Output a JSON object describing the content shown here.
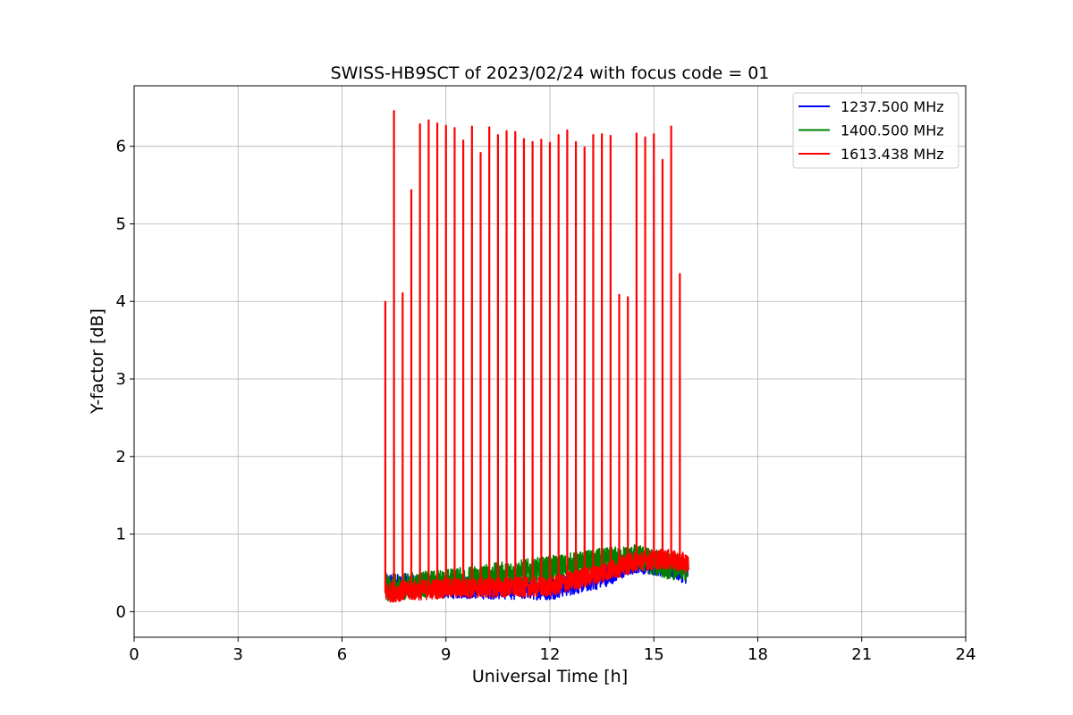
{
  "chart_data": {
    "type": "line",
    "title": "SWISS-HB9SCT of 2023/02/24 with focus code = 01",
    "xlabel": "Universal Time [h]",
    "ylabel": "Y-factor [dB]",
    "xlim": [
      0,
      24
    ],
    "ylim": [
      -0.33,
      6.78
    ],
    "xticks": [
      0,
      3,
      6,
      9,
      12,
      15,
      18,
      21,
      24
    ],
    "yticks": [
      0,
      1,
      2,
      3,
      4,
      5,
      6
    ],
    "grid": true,
    "legend_position": "top-right",
    "series": [
      {
        "name": "1237.500 MHz",
        "color": "#0000ff",
        "x_range": [
          7.25,
          16.0
        ],
        "baseline": [
          [
            7.25,
            0.35
          ],
          [
            9.0,
            0.32
          ],
          [
            12.0,
            0.3
          ],
          [
            13.5,
            0.45
          ],
          [
            14.5,
            0.65
          ],
          [
            15.3,
            0.6
          ],
          [
            16.0,
            0.5
          ]
        ],
        "noise_amplitude": 0.15
      },
      {
        "name": "1400.500 MHz",
        "color": "#008000",
        "x_range": [
          7.25,
          16.0
        ],
        "baseline": [
          [
            7.25,
            0.3
          ],
          [
            9.0,
            0.38
          ],
          [
            12.0,
            0.55
          ],
          [
            13.5,
            0.65
          ],
          [
            14.5,
            0.7
          ],
          [
            15.3,
            0.6
          ],
          [
            16.0,
            0.55
          ]
        ],
        "noise_amplitude": 0.17
      },
      {
        "name": "1613.438 MHz",
        "color": "#ff0000",
        "x_range": [
          7.25,
          16.0
        ],
        "baseline": [
          [
            7.25,
            0.25
          ],
          [
            9.0,
            0.3
          ],
          [
            12.0,
            0.32
          ],
          [
            13.5,
            0.5
          ],
          [
            14.5,
            0.65
          ],
          [
            15.3,
            0.68
          ],
          [
            16.0,
            0.62
          ]
        ],
        "noise_amplitude": 0.13,
        "peaks": [
          [
            7.25,
            4.0
          ],
          [
            7.5,
            6.46
          ],
          [
            7.75,
            4.11
          ],
          [
            8.0,
            5.44
          ],
          [
            8.25,
            6.29
          ],
          [
            8.5,
            6.34
          ],
          [
            8.75,
            6.3
          ],
          [
            9.0,
            6.27
          ],
          [
            9.25,
            6.24
          ],
          [
            9.5,
            6.08
          ],
          [
            9.75,
            6.26
          ],
          [
            10.0,
            5.92
          ],
          [
            10.25,
            6.25
          ],
          [
            10.5,
            6.15
          ],
          [
            10.75,
            6.2
          ],
          [
            11.0,
            6.19
          ],
          [
            11.25,
            6.1
          ],
          [
            11.5,
            6.06
          ],
          [
            11.75,
            6.09
          ],
          [
            12.0,
            6.05
          ],
          [
            12.25,
            6.15
          ],
          [
            12.5,
            6.21
          ],
          [
            12.75,
            6.06
          ],
          [
            13.0,
            5.99
          ],
          [
            13.25,
            6.15
          ],
          [
            13.5,
            6.16
          ],
          [
            13.75,
            6.14
          ],
          [
            14.0,
            4.09
          ],
          [
            14.25,
            4.06
          ],
          [
            14.5,
            6.17
          ],
          [
            14.75,
            6.12
          ],
          [
            15.0,
            6.16
          ],
          [
            15.25,
            5.83
          ],
          [
            15.5,
            6.26
          ],
          [
            15.75,
            4.36
          ]
        ]
      }
    ]
  }
}
